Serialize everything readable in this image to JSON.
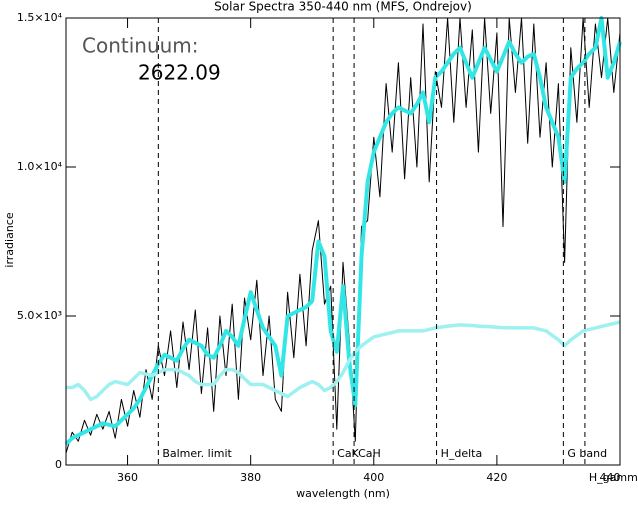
{
  "chart_data": {
    "type": "line",
    "title": "Solar Spectra 350-440 nm (MFS, Ondrejov)",
    "xlabel": "wavelength (nm)",
    "ylabel": "irradiance",
    "annotations": [
      "Continuum:",
      "2622.09"
    ],
    "xlim": [
      350,
      440
    ],
    "xticks": [
      360,
      380,
      400,
      420,
      440
    ],
    "ylim": [
      0,
      15000
    ],
    "yticks": [
      0,
      {
        "value": 5000,
        "label": "5.0×10³"
      },
      {
        "value": 10000,
        "label": "1.0×10⁴"
      },
      {
        "value": 15000,
        "label": "1.5×10⁴"
      }
    ],
    "markers": [
      {
        "x": 365,
        "label": "Balmer. limit"
      },
      {
        "x": 393.4,
        "label": "CaK"
      },
      {
        "x": 396.8,
        "label": "CaH"
      },
      {
        "x": 410.2,
        "label": "H_delta"
      },
      {
        "x": 430.8,
        "label": "G band"
      },
      {
        "x": 434.3,
        "label": "H_gamma"
      }
    ],
    "x": [
      350,
      351,
      352,
      353,
      354,
      355,
      356,
      357,
      358,
      359,
      360,
      361,
      362,
      363,
      364,
      365,
      366,
      367,
      368,
      369,
      370,
      371,
      372,
      373,
      374,
      375,
      376,
      377,
      378,
      379,
      380,
      381,
      382,
      383,
      384,
      385,
      386,
      387,
      388,
      389,
      390,
      391,
      392,
      393,
      394,
      395,
      396,
      397,
      398,
      399,
      400,
      401,
      402,
      403,
      404,
      405,
      406,
      407,
      408,
      409,
      410,
      411,
      412,
      413,
      414,
      415,
      416,
      417,
      418,
      419,
      420,
      421,
      422,
      423,
      424,
      425,
      426,
      427,
      428,
      429,
      430,
      431,
      432,
      433,
      434,
      435,
      436,
      437,
      438,
      439,
      440
    ],
    "series": [
      {
        "color": "#000000",
        "width": 1,
        "values": [
          400,
          1100,
          800,
          1500,
          1000,
          1700,
          1200,
          1800,
          900,
          2200,
          1300,
          2500,
          1600,
          3200,
          2200,
          4000,
          3000,
          4500,
          2600,
          4800,
          3200,
          5200,
          2400,
          4600,
          1800,
          5000,
          3000,
          5400,
          2200,
          5600,
          4200,
          6200,
          3000,
          5000,
          2200,
          1800,
          5800,
          3600,
          6400,
          4000,
          7200,
          8200,
          5400,
          6000,
          1200,
          6800,
          4200,
          800,
          8000,
          8200,
          11000,
          9000,
          12800,
          10500,
          13500,
          9600,
          13000,
          10000,
          14800,
          9500,
          13200,
          12000,
          15000,
          11500,
          15000,
          12000,
          14600,
          10500,
          15000,
          11800,
          14500,
          8000,
          15000,
          12500,
          15000,
          10800,
          14800,
          11000,
          13500,
          10000,
          12800,
          6800,
          14000,
          11500,
          15000,
          12000,
          14800,
          13000,
          15000,
          12500,
          14500
        ]
      },
      {
        "color": "#33e6e6",
        "width": 4,
        "values": [
          700,
          900,
          1000,
          1100,
          1200,
          1300,
          1400,
          1350,
          1300,
          1500,
          1700,
          1900,
          2200,
          2600,
          3000,
          3400,
          3700,
          3600,
          3500,
          3900,
          4200,
          4100,
          4000,
          3700,
          3600,
          4000,
          4500,
          4300,
          4000,
          4900,
          5800,
          5200,
          4600,
          4300,
          4000,
          3000,
          5000,
          5100,
          5200,
          5300,
          5500,
          7500,
          7000,
          4500,
          3800,
          6000,
          3500,
          2000,
          7000,
          9500,
          10500,
          11000,
          11500,
          11800,
          12000,
          11900,
          11800,
          12100,
          12500,
          11500,
          13000,
          13200,
          13500,
          13800,
          14000,
          13500,
          13000,
          13500,
          14000,
          13600,
          13200,
          13700,
          14200,
          13800,
          13500,
          13700,
          13800,
          13000,
          12000,
          11500,
          11000,
          9500,
          13000,
          13300,
          13500,
          13800,
          14000,
          15000,
          13000,
          13500,
          14200
        ]
      },
      {
        "color": "#9ff0f0",
        "width": 3.5,
        "values": [
          2600,
          2600,
          2700,
          2500,
          2200,
          2300,
          2500,
          2700,
          2800,
          2750,
          2700,
          2900,
          3100,
          3050,
          3000,
          3100,
          3200,
          3200,
          3200,
          3100,
          3000,
          2800,
          2700,
          2700,
          2700,
          3000,
          3200,
          3200,
          3100,
          2900,
          2700,
          2700,
          2700,
          2600,
          2500,
          2400,
          2300,
          2450,
          2600,
          2700,
          2800,
          2700,
          2500,
          2600,
          2800,
          3100,
          3500,
          3800,
          4000,
          4150,
          4300,
          4350,
          4400,
          4450,
          4500,
          4500,
          4500,
          4500,
          4500,
          4550,
          4600,
          4630,
          4660,
          4680,
          4700,
          4690,
          4680,
          4660,
          4650,
          4640,
          4620,
          4610,
          4600,
          4600,
          4600,
          4600,
          4600,
          4550,
          4500,
          4350,
          4200,
          4000,
          4200,
          4350,
          4500,
          4550,
          4600,
          4650,
          4700,
          4750,
          4800
        ]
      }
    ]
  }
}
